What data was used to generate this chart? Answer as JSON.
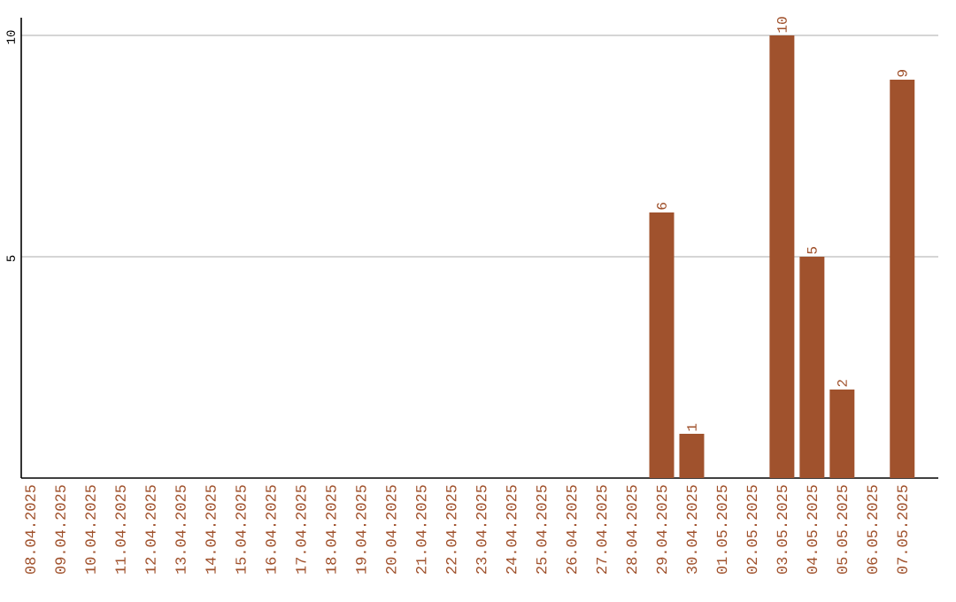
{
  "chart_data": {
    "type": "bar",
    "categories": [
      "08.04.2025",
      "09.04.2025",
      "10.04.2025",
      "11.04.2025",
      "12.04.2025",
      "13.04.2025",
      "14.04.2025",
      "15.04.2025",
      "16.04.2025",
      "17.04.2025",
      "18.04.2025",
      "19.04.2025",
      "20.04.2025",
      "21.04.2025",
      "22.04.2025",
      "23.04.2025",
      "24.04.2025",
      "25.04.2025",
      "26.04.2025",
      "27.04.2025",
      "28.04.2025",
      "29.04.2025",
      "30.04.2025",
      "01.05.2025",
      "02.05.2025",
      "03.05.2025",
      "04.05.2025",
      "05.05.2025",
      "06.05.2025",
      "07.05.2025"
    ],
    "values": [
      0,
      0,
      0,
      0,
      0,
      0,
      0,
      0,
      0,
      0,
      0,
      0,
      0,
      0,
      0,
      0,
      0,
      0,
      0,
      0,
      0,
      6,
      1,
      0,
      0,
      10,
      5,
      2,
      0,
      9
    ],
    "value_labels": [
      null,
      null,
      null,
      null,
      null,
      null,
      null,
      null,
      null,
      null,
      null,
      null,
      null,
      null,
      null,
      null,
      null,
      null,
      null,
      null,
      null,
      "6",
      "1",
      null,
      null,
      "10",
      "5",
      "2",
      null,
      "9"
    ],
    "color": "#a0522d",
    "ylim": [
      0,
      10.4
    ],
    "yticks": [
      5,
      10
    ],
    "grid": "y"
  }
}
